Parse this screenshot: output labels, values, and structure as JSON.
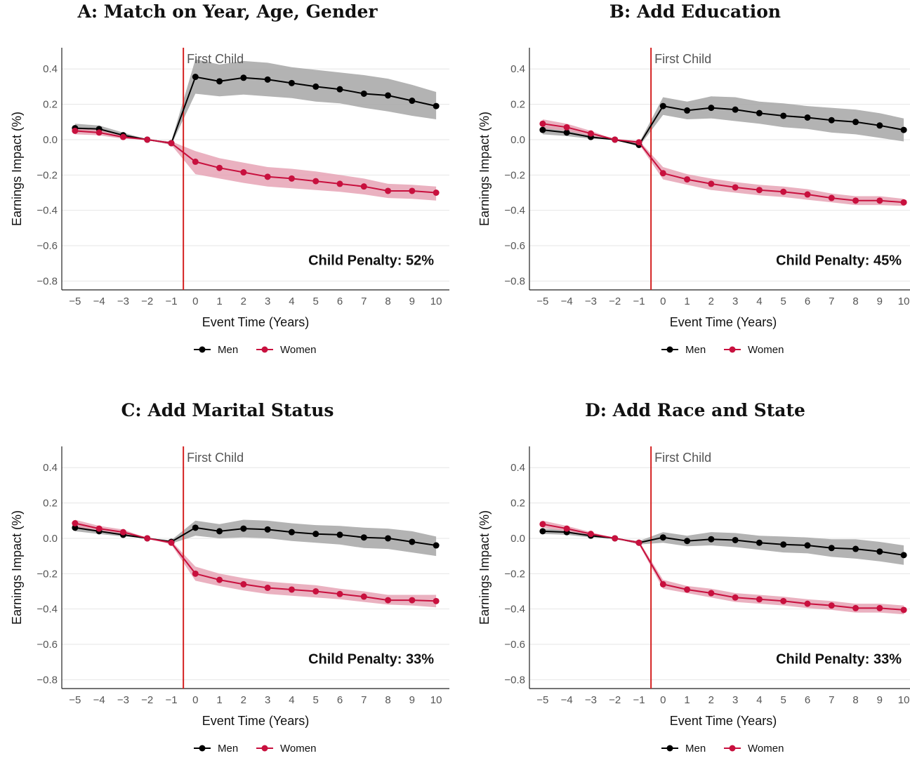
{
  "chart_data": [
    {
      "type": "line",
      "title": "A: Match on Year, Age, Gender",
      "xlabel": "Event Time (Years)",
      "ylabel": "Earnings Impact (%)",
      "x": [
        -5,
        -4,
        -3,
        -2,
        -1,
        0,
        1,
        2,
        3,
        4,
        5,
        6,
        7,
        8,
        9,
        10
      ],
      "x_tick_labels": [
        "−5",
        "−4",
        "−3",
        "−2",
        "−1",
        "0",
        "1",
        "2",
        "3",
        "4",
        "5",
        "6",
        "7",
        "8",
        "9",
        "10"
      ],
      "ylim": [
        -0.85,
        0.52
      ],
      "y_ticks": [
        0.4,
        0.2,
        0.0,
        -0.2,
        -0.4,
        -0.6,
        -0.8
      ],
      "y_tick_labels": [
        "0.4",
        "0.2",
        "0.0",
        "−0.2",
        "−0.4",
        "−0.6",
        "−0.8"
      ],
      "grid": "horizontal",
      "event_line": {
        "x": -0.5,
        "label": "First Child",
        "color": "#d42020"
      },
      "annotation": "Child Penalty: 52%",
      "series": [
        {
          "name": "Men",
          "color": "#000000",
          "band_color": "#a6a6a6",
          "values": [
            0.065,
            0.06,
            0.025,
            0.0,
            -0.02,
            0.355,
            0.33,
            0.35,
            0.34,
            0.32,
            0.3,
            0.285,
            0.26,
            0.25,
            0.22,
            0.19
          ],
          "lower": [
            0.04,
            0.04,
            0.015,
            0.0,
            -0.03,
            0.26,
            0.245,
            0.255,
            0.245,
            0.235,
            0.215,
            0.205,
            0.18,
            0.16,
            0.135,
            0.115
          ],
          "upper": [
            0.09,
            0.08,
            0.04,
            0.0,
            -0.01,
            0.455,
            0.425,
            0.445,
            0.435,
            0.41,
            0.395,
            0.38,
            0.365,
            0.345,
            0.31,
            0.27
          ]
        },
        {
          "name": "Women",
          "color": "#c8103e",
          "band_color": "#e6a3b5",
          "values": [
            0.05,
            0.04,
            0.015,
            0.0,
            -0.02,
            -0.125,
            -0.16,
            -0.185,
            -0.21,
            -0.22,
            -0.235,
            -0.25,
            -0.265,
            -0.29,
            -0.29,
            -0.3
          ],
          "lower": [
            0.03,
            0.025,
            0.005,
            0.0,
            -0.03,
            -0.195,
            -0.22,
            -0.245,
            -0.265,
            -0.275,
            -0.285,
            -0.295,
            -0.31,
            -0.33,
            -0.335,
            -0.345
          ],
          "upper": [
            0.07,
            0.055,
            0.025,
            0.0,
            -0.01,
            -0.065,
            -0.105,
            -0.13,
            -0.155,
            -0.165,
            -0.18,
            -0.2,
            -0.22,
            -0.25,
            -0.255,
            -0.265
          ]
        }
      ]
    },
    {
      "type": "line",
      "title": "B: Add Education",
      "xlabel": "Event Time (Years)",
      "ylabel": "Earnings Impact (%)",
      "x": [
        -5,
        -4,
        -3,
        -2,
        -1,
        0,
        1,
        2,
        3,
        4,
        5,
        6,
        7,
        8,
        9,
        10
      ],
      "x_tick_labels": [
        "−5",
        "−4",
        "−3",
        "−2",
        "−1",
        "0",
        "1",
        "2",
        "3",
        "4",
        "5",
        "6",
        "7",
        "8",
        "9",
        "10"
      ],
      "ylim": [
        -0.85,
        0.52
      ],
      "y_ticks": [
        0.4,
        0.2,
        0.0,
        -0.2,
        -0.4,
        -0.6,
        -0.8
      ],
      "y_tick_labels": [
        "0.4",
        "0.2",
        "0.0",
        "−0.2",
        "−0.4",
        "−0.6",
        "−0.8"
      ],
      "grid": "horizontal",
      "event_line": {
        "x": -0.5,
        "label": "First Child",
        "color": "#d42020"
      },
      "annotation": "Child Penalty: 45%",
      "series": [
        {
          "name": "Men",
          "color": "#000000",
          "band_color": "#a6a6a6",
          "values": [
            0.055,
            0.04,
            0.015,
            0.0,
            -0.03,
            0.19,
            0.165,
            0.18,
            0.17,
            0.15,
            0.135,
            0.125,
            0.11,
            0.1,
            0.08,
            0.055
          ],
          "lower": [
            0.03,
            0.02,
            0.005,
            0.0,
            -0.04,
            0.14,
            0.115,
            0.12,
            0.105,
            0.09,
            0.07,
            0.06,
            0.04,
            0.03,
            0.01,
            -0.01
          ],
          "upper": [
            0.08,
            0.065,
            0.025,
            0.0,
            -0.02,
            0.24,
            0.215,
            0.245,
            0.24,
            0.215,
            0.205,
            0.19,
            0.18,
            0.17,
            0.15,
            0.12
          ]
        },
        {
          "name": "Women",
          "color": "#c8103e",
          "band_color": "#e6a3b5",
          "values": [
            0.09,
            0.07,
            0.035,
            0.0,
            -0.015,
            -0.19,
            -0.225,
            -0.25,
            -0.27,
            -0.285,
            -0.295,
            -0.31,
            -0.33,
            -0.345,
            -0.345,
            -0.355
          ],
          "lower": [
            0.065,
            0.05,
            0.02,
            0.0,
            -0.025,
            -0.225,
            -0.255,
            -0.285,
            -0.3,
            -0.315,
            -0.325,
            -0.34,
            -0.355,
            -0.37,
            -0.37,
            -0.375
          ],
          "upper": [
            0.115,
            0.09,
            0.05,
            0.0,
            -0.005,
            -0.155,
            -0.195,
            -0.22,
            -0.24,
            -0.255,
            -0.265,
            -0.28,
            -0.305,
            -0.32,
            -0.32,
            -0.335
          ]
        }
      ]
    },
    {
      "type": "line",
      "title": "C: Add Marital Status",
      "xlabel": "Event Time (Years)",
      "ylabel": "Earnings Impact (%)",
      "x": [
        -5,
        -4,
        -3,
        -2,
        -1,
        0,
        1,
        2,
        3,
        4,
        5,
        6,
        7,
        8,
        9,
        10
      ],
      "x_tick_labels": [
        "−5",
        "−4",
        "−3",
        "−2",
        "−1",
        "0",
        "1",
        "2",
        "3",
        "4",
        "5",
        "6",
        "7",
        "8",
        "9",
        "10"
      ],
      "ylim": [
        -0.85,
        0.52
      ],
      "y_ticks": [
        0.4,
        0.2,
        0.0,
        -0.2,
        -0.4,
        -0.6,
        -0.8
      ],
      "y_tick_labels": [
        "0.4",
        "0.2",
        "0.0",
        "−0.2",
        "−0.4",
        "−0.6",
        "−0.8"
      ],
      "grid": "horizontal",
      "event_line": {
        "x": -0.5,
        "label": "First Child",
        "color": "#d42020"
      },
      "annotation": "Child Penalty: 33%",
      "series": [
        {
          "name": "Men",
          "color": "#000000",
          "band_color": "#a6a6a6",
          "values": [
            0.06,
            0.04,
            0.02,
            0.0,
            -0.02,
            0.06,
            0.04,
            0.055,
            0.05,
            0.035,
            0.025,
            0.02,
            0.005,
            0.0,
            -0.02,
            -0.04
          ],
          "lower": [
            0.04,
            0.025,
            0.01,
            0.0,
            -0.03,
            0.015,
            0.0,
            0.005,
            0.0,
            -0.015,
            -0.025,
            -0.035,
            -0.055,
            -0.06,
            -0.08,
            -0.1
          ],
          "upper": [
            0.08,
            0.055,
            0.03,
            0.0,
            -0.01,
            0.1,
            0.08,
            0.105,
            0.1,
            0.085,
            0.075,
            0.07,
            0.06,
            0.055,
            0.04,
            0.01
          ]
        },
        {
          "name": "Women",
          "color": "#c8103e",
          "band_color": "#e6a3b5",
          "values": [
            0.085,
            0.055,
            0.035,
            0.0,
            -0.025,
            -0.2,
            -0.235,
            -0.26,
            -0.28,
            -0.29,
            -0.3,
            -0.315,
            -0.33,
            -0.35,
            -0.35,
            -0.355
          ],
          "lower": [
            0.065,
            0.04,
            0.02,
            0.0,
            -0.035,
            -0.24,
            -0.27,
            -0.295,
            -0.315,
            -0.325,
            -0.335,
            -0.345,
            -0.36,
            -0.375,
            -0.38,
            -0.39
          ],
          "upper": [
            0.105,
            0.07,
            0.05,
            0.0,
            -0.015,
            -0.16,
            -0.2,
            -0.225,
            -0.245,
            -0.255,
            -0.265,
            -0.285,
            -0.3,
            -0.32,
            -0.32,
            -0.32
          ]
        }
      ]
    },
    {
      "type": "line",
      "title": "D: Add Race and State",
      "xlabel": "Event Time (Years)",
      "ylabel": "Earnings Impact (%)",
      "x": [
        -5,
        -4,
        -3,
        -2,
        -1,
        0,
        1,
        2,
        3,
        4,
        5,
        6,
        7,
        8,
        9,
        10
      ],
      "x_tick_labels": [
        "−5",
        "−4",
        "−3",
        "−2",
        "−1",
        "0",
        "1",
        "2",
        "3",
        "4",
        "5",
        "6",
        "7",
        "8",
        "9",
        "10"
      ],
      "ylim": [
        -0.85,
        0.52
      ],
      "y_ticks": [
        0.4,
        0.2,
        0.0,
        -0.2,
        -0.4,
        -0.6,
        -0.8
      ],
      "y_tick_labels": [
        "0.4",
        "0.2",
        "0.0",
        "−0.2",
        "−0.4",
        "−0.6",
        "−0.8"
      ],
      "grid": "horizontal",
      "event_line": {
        "x": -0.5,
        "label": "First Child",
        "color": "#d42020"
      },
      "annotation": "Child Penalty: 33%",
      "series": [
        {
          "name": "Men",
          "color": "#000000",
          "band_color": "#a6a6a6",
          "values": [
            0.04,
            0.035,
            0.015,
            0.0,
            -0.025,
            0.005,
            -0.015,
            -0.005,
            -0.01,
            -0.025,
            -0.035,
            -0.04,
            -0.055,
            -0.06,
            -0.075,
            -0.095
          ],
          "lower": [
            0.025,
            0.02,
            0.005,
            0.0,
            -0.035,
            -0.025,
            -0.045,
            -0.04,
            -0.05,
            -0.065,
            -0.08,
            -0.085,
            -0.105,
            -0.115,
            -0.13,
            -0.15
          ],
          "upper": [
            0.055,
            0.05,
            0.025,
            0.0,
            -0.015,
            0.035,
            0.015,
            0.035,
            0.03,
            0.015,
            0.01,
            0.005,
            -0.005,
            -0.005,
            -0.02,
            -0.04
          ]
        },
        {
          "name": "Women",
          "color": "#c8103e",
          "band_color": "#e6a3b5",
          "values": [
            0.08,
            0.055,
            0.025,
            0.0,
            -0.025,
            -0.26,
            -0.29,
            -0.31,
            -0.335,
            -0.345,
            -0.355,
            -0.37,
            -0.38,
            -0.395,
            -0.395,
            -0.405
          ],
          "lower": [
            0.06,
            0.04,
            0.015,
            0.0,
            -0.035,
            -0.285,
            -0.31,
            -0.335,
            -0.36,
            -0.37,
            -0.38,
            -0.395,
            -0.405,
            -0.42,
            -0.42,
            -0.43
          ],
          "upper": [
            0.1,
            0.07,
            0.035,
            0.0,
            -0.015,
            -0.235,
            -0.27,
            -0.285,
            -0.31,
            -0.32,
            -0.33,
            -0.345,
            -0.355,
            -0.37,
            -0.37,
            -0.38
          ]
        }
      ]
    }
  ]
}
